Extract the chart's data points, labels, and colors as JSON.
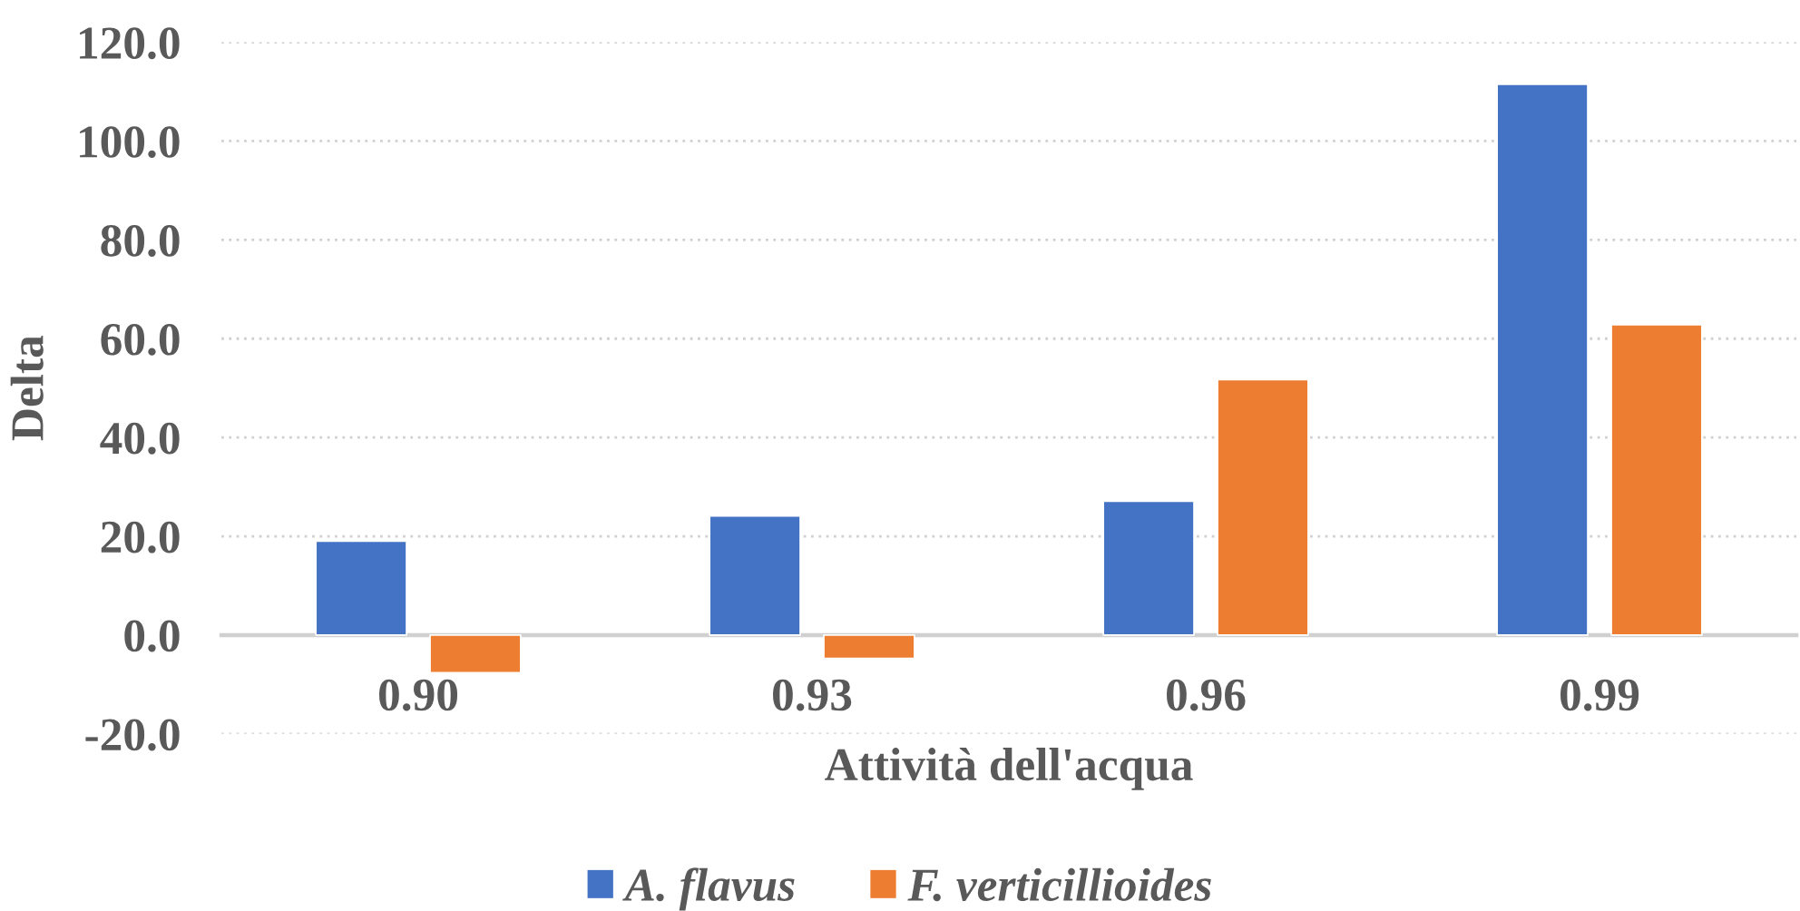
{
  "chart_data": {
    "type": "bar",
    "xlabel": "Attività dell'acqua",
    "ylabel": "Delta",
    "categories": [
      "0.90",
      "0.93",
      "0.96",
      "0.99"
    ],
    "series": [
      {
        "name": "A. flavus",
        "color": "#4472c4",
        "values": [
          19.0,
          24.1,
          27.1,
          111.5
        ]
      },
      {
        "name": "F. verticillioides",
        "color": "#ed7d31",
        "values": [
          -7.6,
          -4.7,
          51.7,
          62.8
        ]
      }
    ],
    "ylim": [
      -20,
      120
    ],
    "yticks": [
      {
        "value": -20,
        "label": "-20.0"
      },
      {
        "value": 0,
        "label": "0.0"
      },
      {
        "value": 20,
        "label": "20.0"
      },
      {
        "value": 40,
        "label": "40.0"
      },
      {
        "value": 60,
        "label": "60.0"
      },
      {
        "value": 80,
        "label": "80.0"
      },
      {
        "value": 100,
        "label": "100.0"
      },
      {
        "value": 120,
        "label": "120.0"
      }
    ],
    "grid": "y",
    "legend": "bottom"
  }
}
